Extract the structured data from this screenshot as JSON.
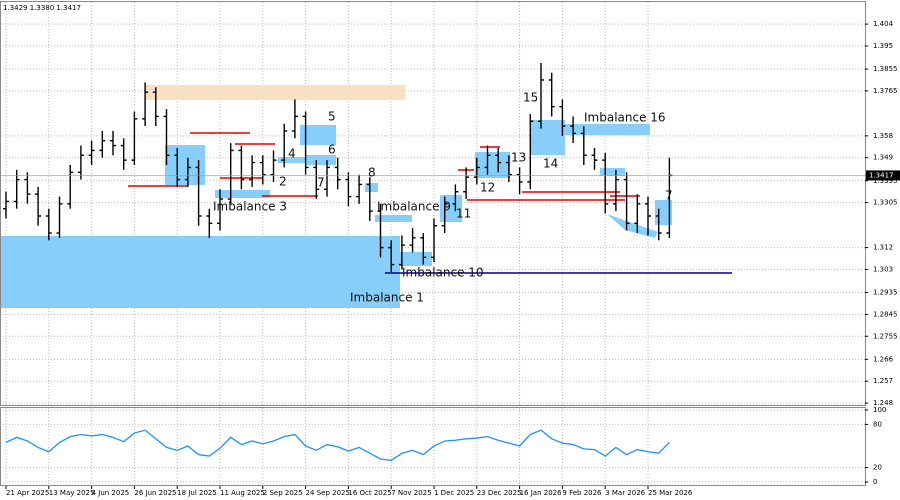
{
  "chart_data": [
    {
      "type": "ohlc",
      "header": "1.3429 1.3380 1.3417",
      "categories": [
        "21 Apr 2025",
        null,
        null,
        null,
        "13 May 2025",
        null,
        null,
        null,
        "4 Jun 2025",
        null,
        null,
        null,
        "26 Jun 2025",
        null,
        null,
        null,
        "18 Jul 2025",
        null,
        null,
        null,
        "11 Aug 2025",
        null,
        null,
        null,
        "2 Sep 2025",
        null,
        null,
        null,
        "24 Sep 2025",
        null,
        null,
        null,
        "16 Oct 2025",
        null,
        null,
        null,
        "7 Nov 2025",
        null,
        null,
        null,
        "1 Dec 2025",
        null,
        null,
        null,
        "23 Dec 2025",
        null,
        null,
        null,
        "16 Jan 2026",
        null,
        null,
        null,
        "9 Feb 2026",
        null,
        null,
        null,
        "3 Mar 2026",
        null,
        null,
        null,
        "25 Mar 2026",
        null,
        null
      ],
      "open": [
        1.328,
        1.331,
        1.34,
        1.334,
        1.325,
        1.318,
        1.33,
        1.343,
        1.35,
        1.352,
        1.356,
        1.354,
        1.348,
        1.365,
        1.376,
        1.366,
        1.35,
        1.34,
        1.345,
        1.325,
        1.322,
        1.332,
        1.352,
        1.34,
        1.347,
        1.342,
        1.348,
        1.36,
        1.366,
        1.345,
        1.336,
        1.345,
        1.34,
        1.333,
        1.338,
        1.327,
        1.312,
        1.305,
        1.313,
        1.316,
        1.308,
        1.321,
        1.33,
        1.335,
        1.341,
        1.345,
        1.35,
        1.347,
        1.342,
        1.339,
        1.364,
        1.381,
        1.37,
        1.362,
        1.359,
        1.35,
        1.348,
        1.33,
        1.34,
        1.322,
        1.33,
        1.325,
        1.318
      ],
      "high": [
        1.335,
        1.344,
        1.343,
        1.337,
        1.328,
        1.333,
        1.346,
        1.354,
        1.356,
        1.36,
        1.36,
        1.357,
        1.368,
        1.38,
        1.378,
        1.369,
        1.353,
        1.349,
        1.348,
        1.328,
        1.336,
        1.355,
        1.354,
        1.35,
        1.35,
        1.352,
        1.363,
        1.373,
        1.368,
        1.348,
        1.348,
        1.349,
        1.343,
        1.342,
        1.341,
        1.33,
        1.315,
        1.317,
        1.32,
        1.318,
        1.324,
        1.333,
        1.338,
        1.345,
        1.349,
        1.354,
        1.353,
        1.35,
        1.345,
        1.367,
        1.388,
        1.384,
        1.373,
        1.366,
        1.362,
        1.353,
        1.351,
        1.344,
        1.343,
        1.334,
        1.333,
        1.328,
        1.349
      ],
      "low": [
        1.324,
        1.328,
        1.33,
        1.321,
        1.315,
        1.316,
        1.328,
        1.34,
        1.346,
        1.349,
        1.35,
        1.344,
        1.346,
        1.362,
        1.362,
        1.346,
        1.337,
        1.337,
        1.321,
        1.316,
        1.319,
        1.33,
        1.336,
        1.337,
        1.338,
        1.339,
        1.345,
        1.357,
        1.342,
        1.332,
        1.333,
        1.336,
        1.329,
        1.33,
        1.323,
        1.308,
        1.302,
        1.303,
        1.31,
        1.305,
        1.306,
        1.318,
        1.327,
        1.332,
        1.338,
        1.342,
        1.343,
        1.339,
        1.334,
        1.336,
        1.361,
        1.366,
        1.358,
        1.355,
        1.346,
        1.344,
        1.326,
        1.327,
        1.319,
        1.318,
        1.317,
        1.315,
        1.316
      ],
      "close": [
        1.331,
        1.34,
        1.334,
        1.325,
        1.318,
        1.33,
        1.343,
        1.35,
        1.352,
        1.356,
        1.354,
        1.348,
        1.365,
        1.376,
        1.366,
        1.35,
        1.34,
        1.345,
        1.325,
        1.322,
        1.332,
        1.352,
        1.34,
        1.347,
        1.342,
        1.348,
        1.36,
        1.366,
        1.345,
        1.336,
        1.345,
        1.34,
        1.333,
        1.338,
        1.327,
        1.312,
        1.305,
        1.313,
        1.316,
        1.308,
        1.321,
        1.33,
        1.335,
        1.341,
        1.345,
        1.35,
        1.347,
        1.342,
        1.339,
        1.364,
        1.381,
        1.37,
        1.362,
        1.359,
        1.35,
        1.348,
        1.33,
        1.34,
        1.322,
        1.33,
        1.325,
        1.318,
        1.3417
      ],
      "color": "#000000",
      "current_price": 1.3417,
      "ylim": [
        1.2472,
        1.4131
      ],
      "yticks": [
        1.404,
        1.395,
        1.3855,
        1.3765,
        1.358,
        1.349,
        1.3395,
        1.3305,
        1.312,
        1.303,
        1.2935,
        1.2845,
        1.2755,
        1.266,
        1.257,
        1.248
      ],
      "grid": true,
      "annotations": [
        "Imbalance 1",
        "Imbalance 3",
        "Imbalance 9",
        "Imbalance 10",
        "Imbalance 16",
        "2",
        "4",
        "5",
        "6",
        "7",
        "8",
        "11",
        "12",
        "13",
        "14",
        "15",
        "7"
      ]
    },
    {
      "type": "line",
      "values": [
        55,
        62,
        57,
        48,
        42,
        55,
        63,
        66,
        64,
        66,
        62,
        56,
        68,
        72,
        60,
        48,
        44,
        50,
        38,
        36,
        47,
        62,
        52,
        57,
        53,
        57,
        63,
        66,
        50,
        44,
        52,
        49,
        43,
        48,
        40,
        32,
        30,
        40,
        44,
        38,
        50,
        57,
        58,
        60,
        61,
        63,
        58,
        54,
        50,
        66,
        72,
        60,
        54,
        52,
        46,
        45,
        36,
        48,
        38,
        45,
        42,
        40,
        55
      ],
      "color": "#1e90ff",
      "ylim": [
        0,
        100
      ],
      "yticks": [
        100,
        80,
        20,
        0
      ],
      "grid": true
    }
  ]
}
